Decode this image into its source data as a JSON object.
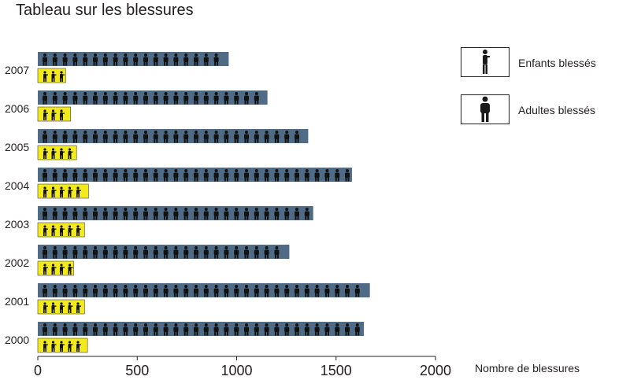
{
  "title": "Tableau sur les blessures",
  "legend": [
    {
      "label": "Enfants blessés",
      "color": "#f3ea1d",
      "icon": "child-silhouette-icon"
    },
    {
      "label": "Adultes blessés",
      "color": "#4f6b86",
      "icon": "adult-silhouette-icon"
    }
  ],
  "chart_data": {
    "type": "bar",
    "orientation": "horizontal",
    "title": "Tableau sur les blessures",
    "xlabel": "Nombre de blessures",
    "ylabel": "",
    "xlim": [
      0,
      2000
    ],
    "xticks": [
      0,
      500,
      1000,
      1500,
      2000
    ],
    "categories": [
      "2007",
      "2006",
      "2005",
      "2004",
      "2003",
      "2002",
      "2001",
      "2000"
    ],
    "series": [
      {
        "name": "Adultes blessés",
        "color": "#4f6b86",
        "values": [
          960,
          1155,
          1360,
          1580,
          1385,
          1265,
          1670,
          1640
        ]
      },
      {
        "name": "Enfants blessés",
        "color": "#f3ea1d",
        "values": [
          140,
          165,
          195,
          255,
          235,
          180,
          235,
          250
        ]
      }
    ],
    "grid": false,
    "legend_position": "right"
  }
}
